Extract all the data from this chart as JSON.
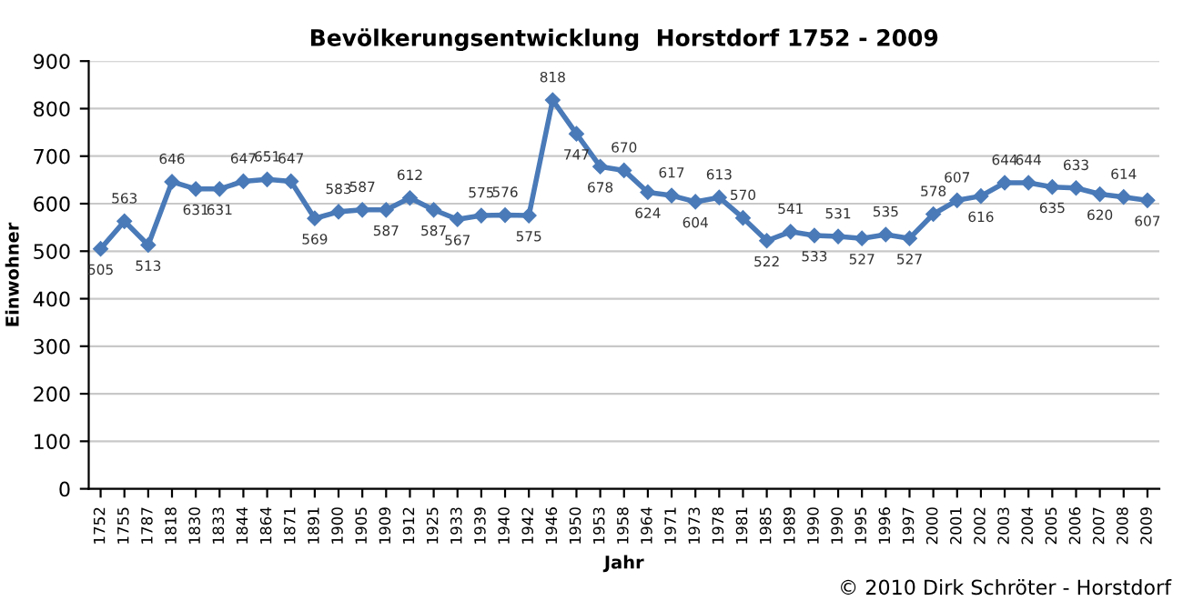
{
  "chart_data": {
    "type": "line",
    "title": "Bevölkerungsentwicklung  Horstdorf 1752 - 2009",
    "xlabel": "Jahr",
    "ylabel": "Einwohner",
    "categories": [
      "1752",
      "1755",
      "1787",
      "1818",
      "1830",
      "1833",
      "1844",
      "1864",
      "1871",
      "1891",
      "1900",
      "1905",
      "1909",
      "1912",
      "1925",
      "1933",
      "1939",
      "1940",
      "1942",
      "1946",
      "1950",
      "1953",
      "1958",
      "1964",
      "1971",
      "1973",
      "1978",
      "1981",
      "1985",
      "1989",
      "1990",
      "1990",
      "1995",
      "1996",
      "1997",
      "2000",
      "2001",
      "2002",
      "2003",
      "2004",
      "2005",
      "2006",
      "2007",
      "2008",
      "2009"
    ],
    "series": [
      {
        "color": "#4a7ab8",
        "values": [
          505,
          563,
          513,
          646,
          631,
          631,
          647,
          651,
          647,
          569,
          583,
          587,
          587,
          612,
          587,
          567,
          575,
          576,
          575,
          818,
          747,
          678,
          670,
          624,
          617,
          604,
          613,
          570,
          522,
          541,
          533,
          531,
          527,
          535,
          527,
          578,
          607,
          616,
          644,
          644,
          635,
          633,
          620,
          614,
          607
        ]
      }
    ],
    "ylim": [
      0,
      900
    ],
    "yticks": [
      0,
      100,
      200,
      300,
      400,
      500,
      600,
      700,
      800,
      900
    ],
    "grid": "y",
    "marker": "diamond",
    "line_style": "solid",
    "data_labels": true,
    "legend": false,
    "annotations": [
      "© 2010 Dirk Schröter - Horstdorf"
    ]
  }
}
